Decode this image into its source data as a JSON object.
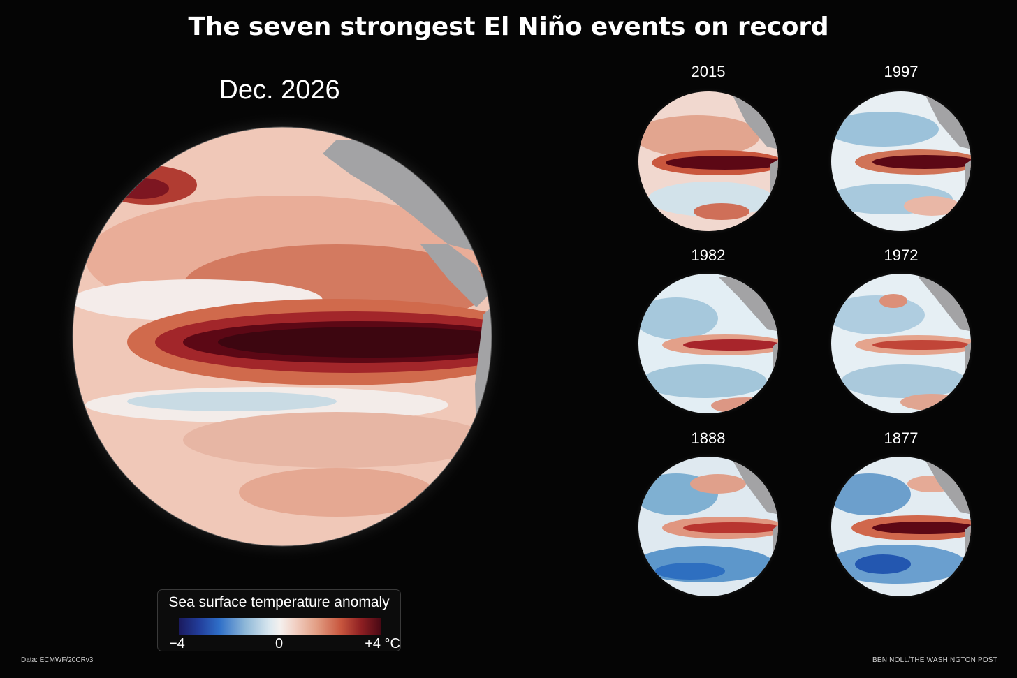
{
  "title": "The seven strongest El Niño events on record",
  "main_globe": {
    "label": "Dec. 2026"
  },
  "small_globes": [
    {
      "label": "2015"
    },
    {
      "label": "1997"
    },
    {
      "label": "1982"
    },
    {
      "label": "1972"
    },
    {
      "label": "1888"
    },
    {
      "label": "1877"
    }
  ],
  "legend": {
    "title": "Sea surface temperature anomaly",
    "min_label": "−4",
    "mid_label": "0",
    "max_label": "+4 °C",
    "colors": [
      "#1a1a5e",
      "#2f6fc8",
      "#dbe8ef",
      "#f4f0ee",
      "#e29e84",
      "#c8563e",
      "#470814"
    ]
  },
  "source": "Data: ECMWF/20CRv3",
  "credit": "BEN NOLL/THE WASHINGTON POST",
  "colors": {
    "background": "#050505",
    "land": "#a3a3a5",
    "warm_core": "#3d0610"
  }
}
